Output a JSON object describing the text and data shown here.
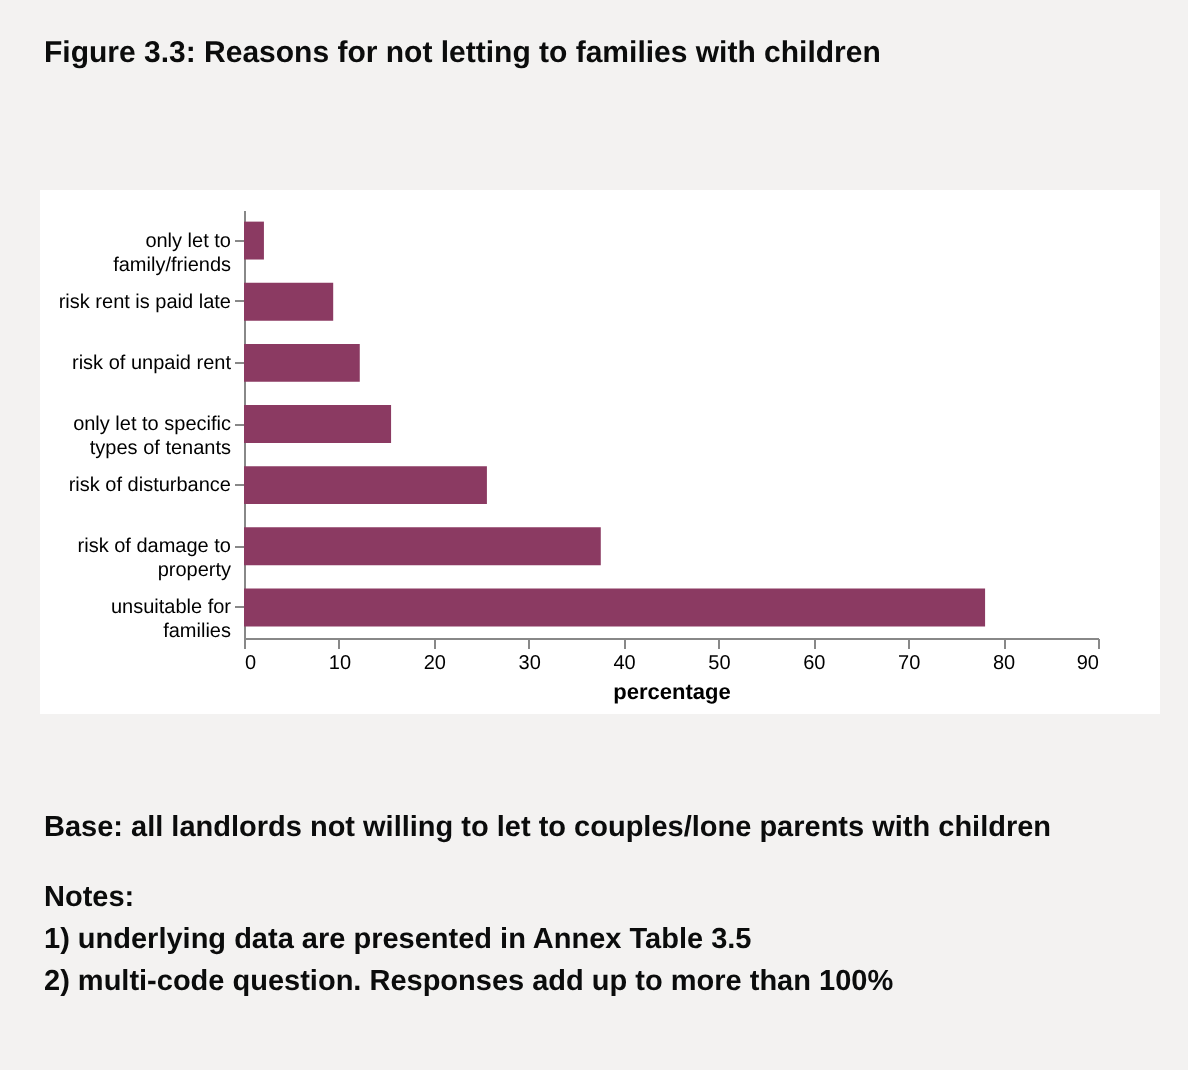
{
  "chart_data": {
    "type": "bar",
    "title": "Figure 3.3: Reasons for not letting to families with children",
    "orientation": "horizontal",
    "categories": [
      "only let to family/friends",
      "risk rent is paid late",
      "risk of unpaid rent",
      "only let to specific types of tenants",
      "risk of disturbance",
      "risk of damage to property",
      "unsuitable for families"
    ],
    "values": [
      2.1,
      9.4,
      12.2,
      15.5,
      25.6,
      37.6,
      78.1
    ],
    "color": "#8b3a62",
    "xlabel": "percentage",
    "xlim": [
      0,
      90
    ],
    "xticks": [
      0,
      10,
      20,
      30,
      40,
      50,
      60,
      70,
      80,
      90
    ],
    "grid": false,
    "annotations": [
      "Base: all landlords not willing to let to couples/lone parents with children",
      "Notes:",
      "1) underlying data are presented in Annex Table 3.5",
      "2) multi-code question. Responses add up to more than 100%"
    ]
  }
}
